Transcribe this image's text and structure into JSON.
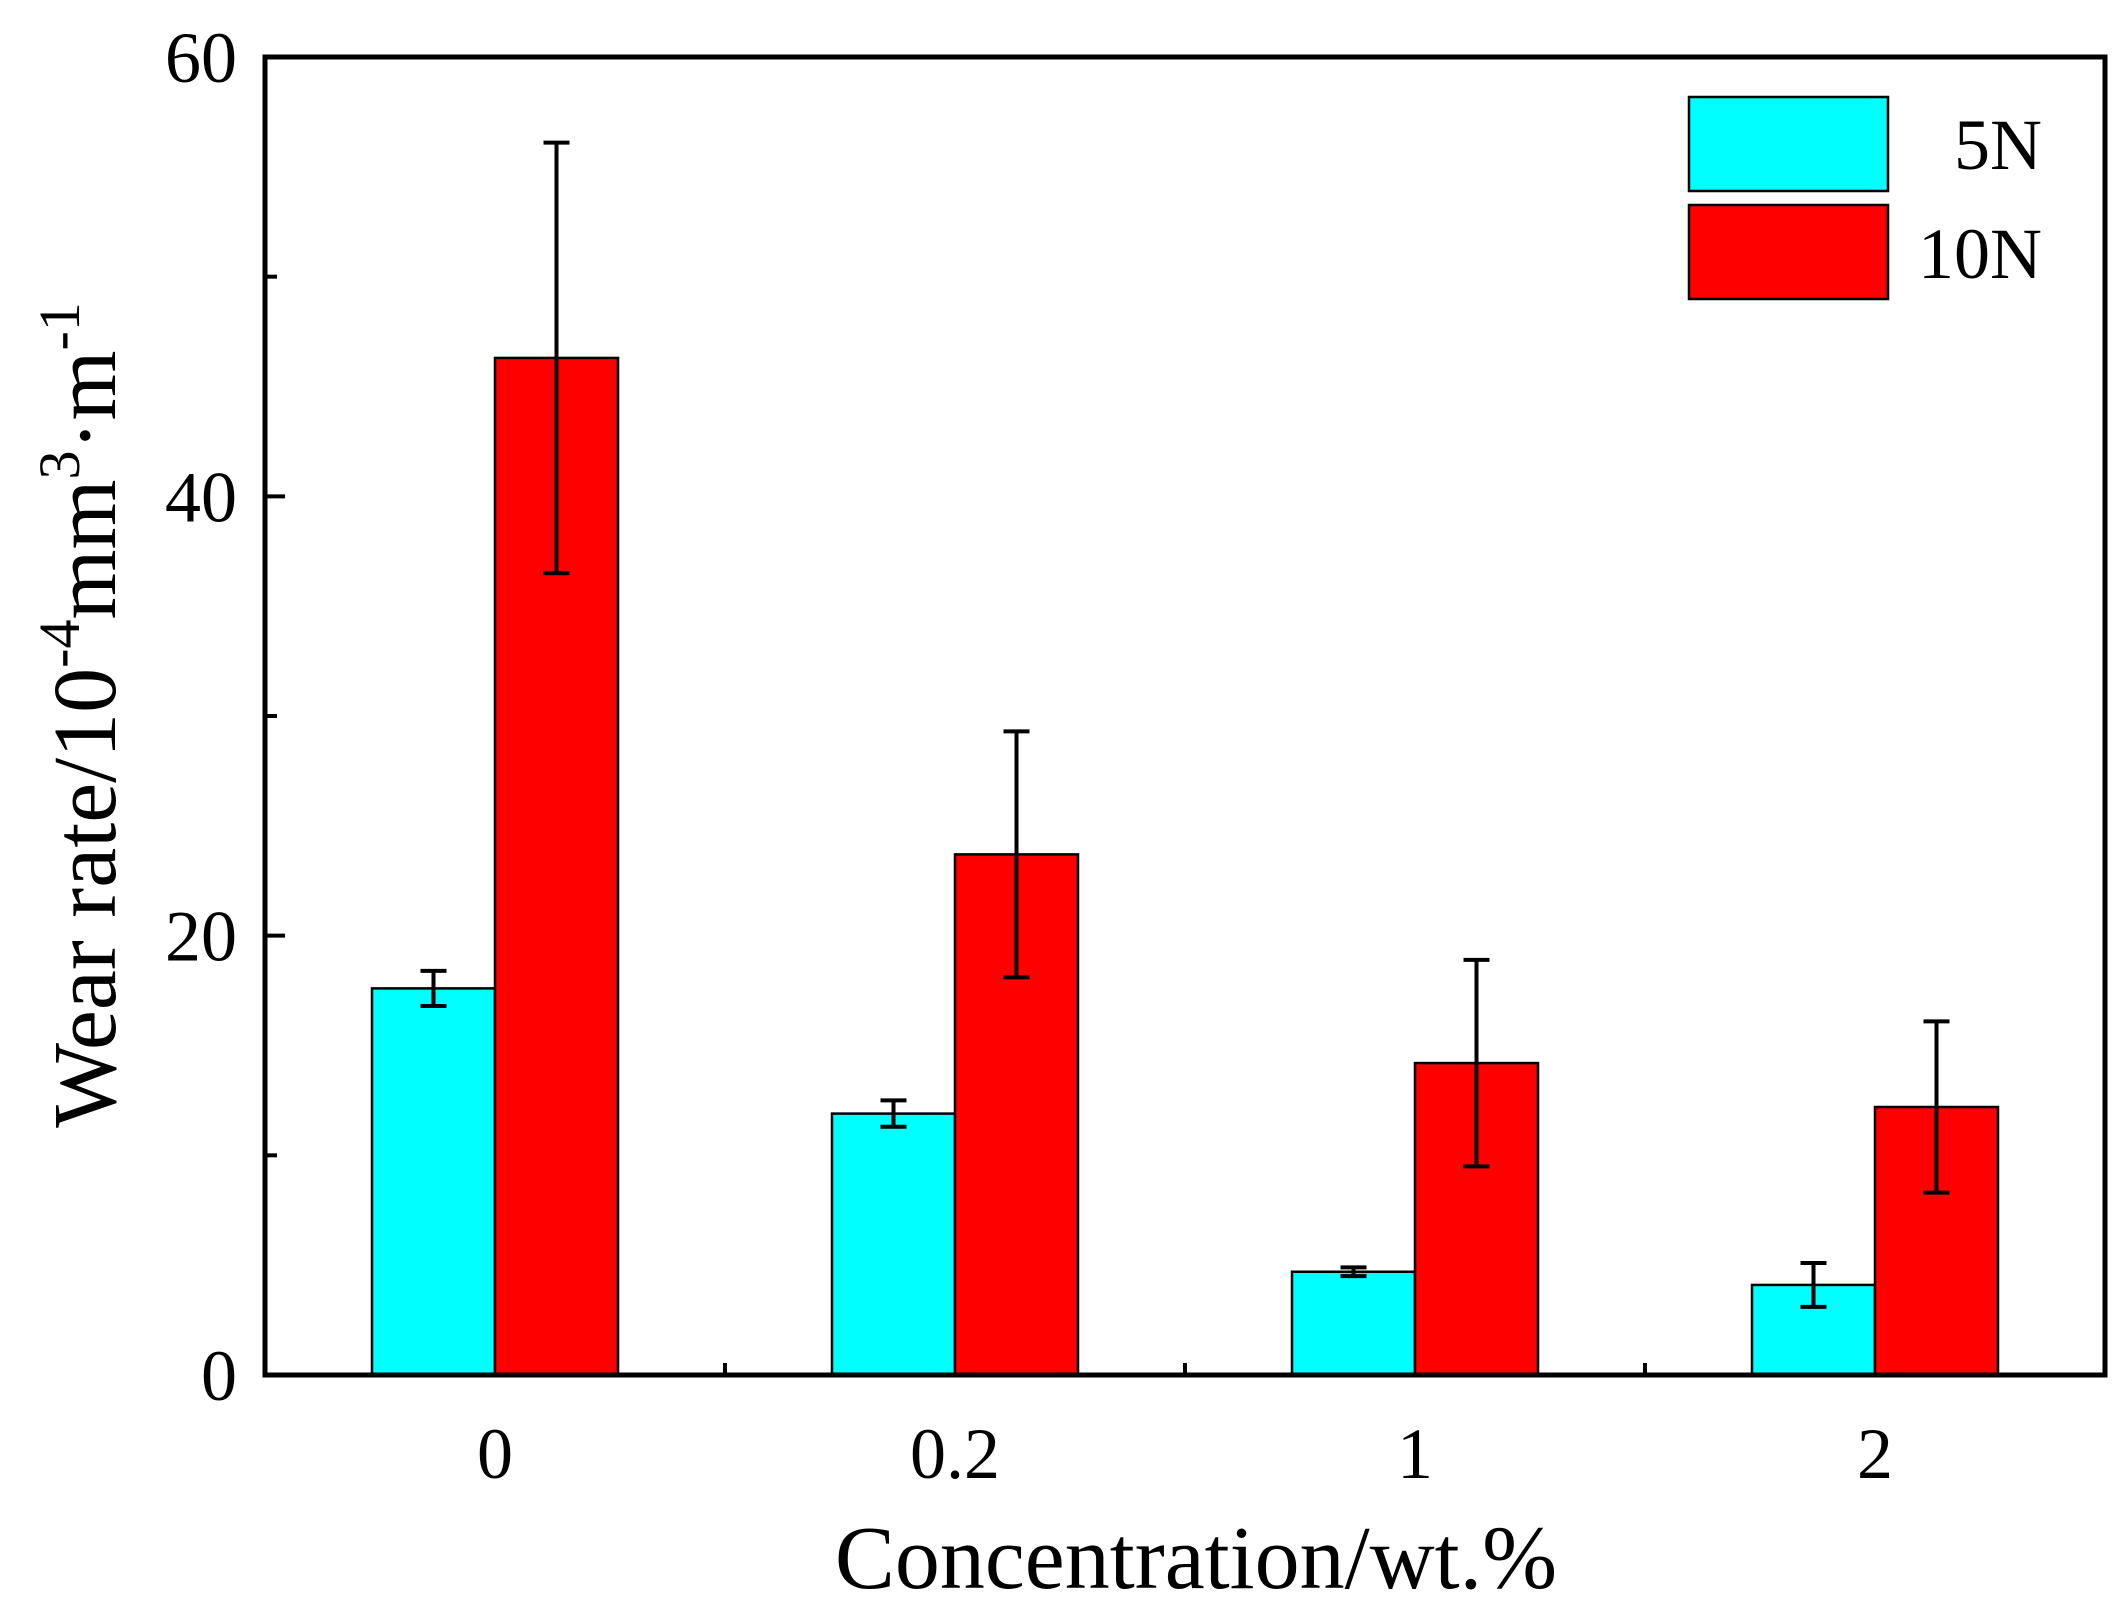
{
  "chart_data": {
    "type": "bar",
    "categories": [
      "0",
      "0.2",
      "1",
      "2"
    ],
    "series": [
      {
        "name": "5N",
        "color": "#00FFFF",
        "values": [
          17.6,
          11.9,
          4.7,
          4.1
        ],
        "errors": [
          0.8,
          0.6,
          0.2,
          1.0
        ]
      },
      {
        "name": "10N",
        "color": "#FF0000",
        "values": [
          46.3,
          23.7,
          14.2,
          12.2
        ],
        "errors": [
          9.8,
          5.6,
          4.7,
          3.9
        ]
      }
    ],
    "xlabel": "Concentration/wt.%",
    "ylabel": {
      "prefix": "Wear rate/10",
      "exp1": "-4",
      "mid": "mm",
      "exp2": "3",
      "suffix": "·m",
      "exp3": "-1"
    },
    "ylim": [
      0,
      60
    ],
    "yticks": [
      "0",
      "20",
      "40",
      "60"
    ],
    "legend_position": "top-right"
  }
}
